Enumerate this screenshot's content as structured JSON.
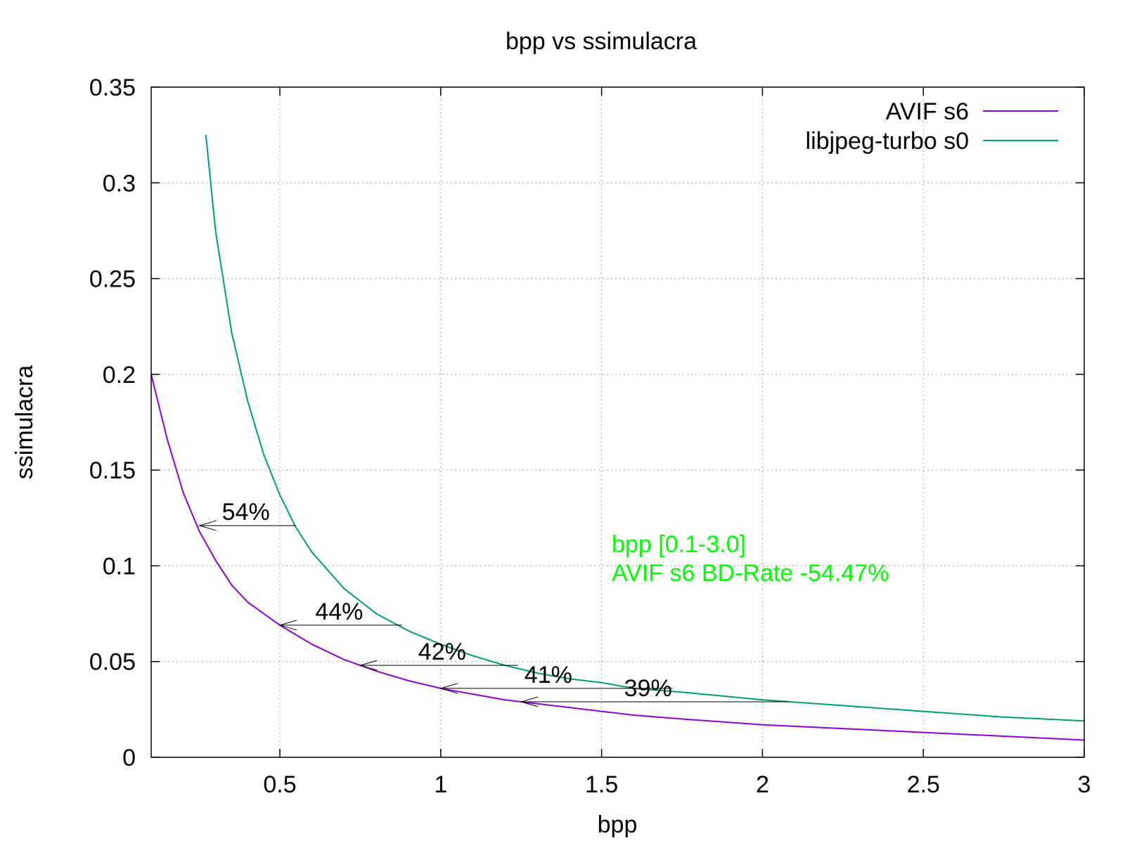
{
  "chart_data": {
    "type": "line",
    "title": "bpp vs ssimulacra",
    "xlabel": "bpp",
    "ylabel": "ssimulacra",
    "xlim": [
      0.1,
      3.0
    ],
    "ylim": [
      0,
      0.35
    ],
    "xticks": [
      {
        "value": 0.5,
        "label": "0.5"
      },
      {
        "value": 1.0,
        "label": "1"
      },
      {
        "value": 1.5,
        "label": "1.5"
      },
      {
        "value": 2.0,
        "label": "2"
      },
      {
        "value": 2.5,
        "label": "2.5"
      },
      {
        "value": 3.0,
        "label": "3"
      }
    ],
    "yticks": [
      {
        "value": 0,
        "label": "0"
      },
      {
        "value": 0.05,
        "label": "0.05"
      },
      {
        "value": 0.1,
        "label": "0.1"
      },
      {
        "value": 0.15,
        "label": "0.15"
      },
      {
        "value": 0.2,
        "label": "0.2"
      },
      {
        "value": 0.25,
        "label": "0.25"
      },
      {
        "value": 0.3,
        "label": "0.3"
      },
      {
        "value": 0.35,
        "label": "0.35"
      }
    ],
    "grid": true,
    "legend_position": "top-right",
    "series": [
      {
        "name": "AVIF s6",
        "color": "#9400d3",
        "x": [
          0.1,
          0.15,
          0.2,
          0.25,
          0.3,
          0.35,
          0.4,
          0.45,
          0.5,
          0.6,
          0.7,
          0.75,
          0.8,
          0.9,
          1.0,
          1.1,
          1.2,
          1.3,
          1.4,
          1.5,
          1.6,
          1.75,
          2.0,
          2.25,
          2.5,
          2.75,
          3.0
        ],
        "y": [
          0.2,
          0.166,
          0.138,
          0.118,
          0.103,
          0.09,
          0.081,
          0.075,
          0.069,
          0.059,
          0.051,
          0.048,
          0.045,
          0.04,
          0.036,
          0.033,
          0.03,
          0.028,
          0.026,
          0.024,
          0.022,
          0.02,
          0.017,
          0.015,
          0.013,
          0.011,
          0.009
        ]
      },
      {
        "name": "libjpeg-turbo s0",
        "color": "#009e73",
        "x": [
          0.27,
          0.3,
          0.35,
          0.4,
          0.45,
          0.5,
          0.55,
          0.6,
          0.7,
          0.8,
          0.9,
          1.0,
          1.1,
          1.2,
          1.3,
          1.4,
          1.5,
          1.6,
          1.75,
          2.0,
          2.25,
          2.5,
          2.75,
          3.0
        ],
        "y": [
          0.325,
          0.275,
          0.222,
          0.186,
          0.158,
          0.137,
          0.12,
          0.107,
          0.088,
          0.075,
          0.066,
          0.059,
          0.053,
          0.048,
          0.044,
          0.041,
          0.039,
          0.036,
          0.034,
          0.03,
          0.027,
          0.024,
          0.021,
          0.019
        ]
      }
    ],
    "annotations": [
      {
        "label": "54%",
        "y": 0.121,
        "x_from": 0.55,
        "x_to": 0.25,
        "label_x": 0.32
      },
      {
        "label": "44%",
        "y": 0.069,
        "x_from": 0.88,
        "x_to": 0.5,
        "label_x": 0.61
      },
      {
        "label": "42%",
        "y": 0.048,
        "x_from": 1.24,
        "x_to": 0.75,
        "label_x": 0.93
      },
      {
        "label": "41%",
        "y": 0.036,
        "x_from": 1.72,
        "x_to": 1.0,
        "label_x": 1.26
      },
      {
        "label": "39%",
        "y": 0.029,
        "x_from": 2.08,
        "x_to": 1.25,
        "label_x": 1.57
      }
    ],
    "bd_rate_text": [
      "bpp [0.1-3.0]",
      "AVIF s6 BD-Rate -54.47%"
    ],
    "bd_rate_color": "#00ff00"
  }
}
